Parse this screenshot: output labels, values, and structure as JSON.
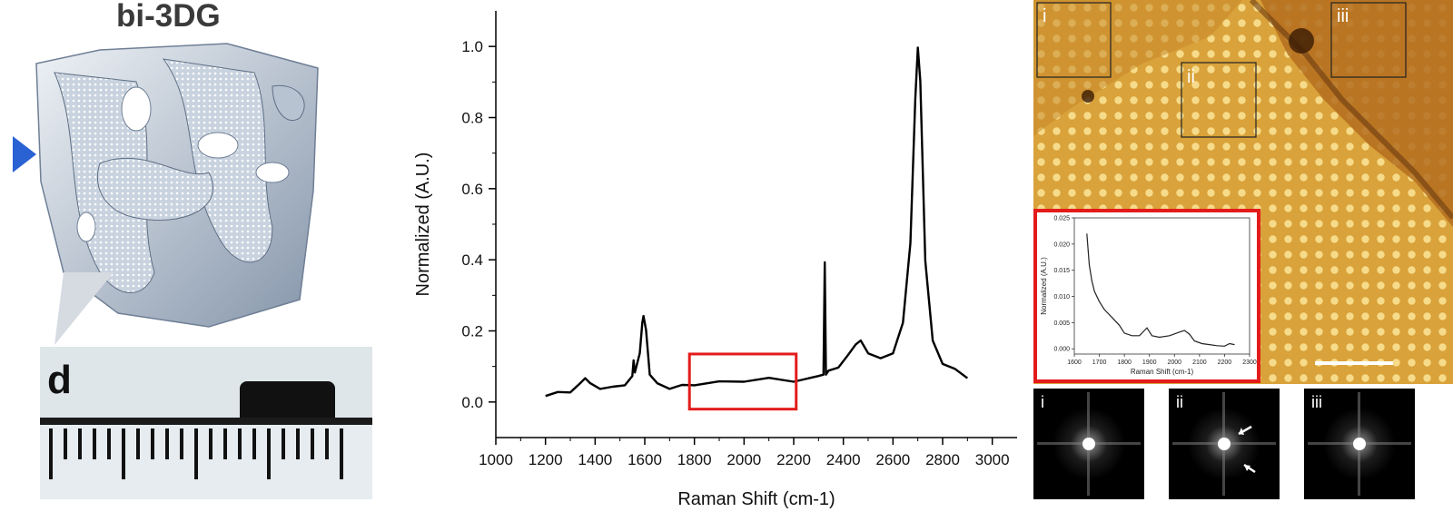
{
  "left_panel": {
    "title": "bi-3DG",
    "photo_label": "d",
    "pointer_color": "#2a62d4"
  },
  "chart_data": {
    "type": "line",
    "xlabel": "Raman Shift (cm-1)",
    "ylabel": "Normalized (A.U.)",
    "xlim": [
      1000,
      3100
    ],
    "ylim": [
      -0.1,
      1.1
    ],
    "xticks": [
      1000,
      1200,
      1400,
      1600,
      1800,
      2000,
      2200,
      2400,
      2600,
      2800,
      3000
    ],
    "yticks": [
      0.0,
      0.2,
      0.4,
      0.6,
      0.8,
      1.0
    ],
    "series": [
      {
        "color": "#000000",
        "x": [
          1200,
          1250,
          1300,
          1340,
          1360,
          1380,
          1420,
          1470,
          1520,
          1550,
          1555,
          1560,
          1580,
          1590,
          1595,
          1605,
          1620,
          1650,
          1700,
          1750,
          1800,
          1900,
          2000,
          2100,
          2200,
          2300,
          2320,
          2325,
          2330,
          2340,
          2380,
          2420,
          2450,
          2470,
          2500,
          2550,
          2600,
          2640,
          2670,
          2690,
          2700,
          2710,
          2730,
          2760,
          2800,
          2850,
          2900
        ],
        "y": [
          0.02,
          0.025,
          0.03,
          0.05,
          0.07,
          0.05,
          0.04,
          0.04,
          0.05,
          0.07,
          0.12,
          0.08,
          0.14,
          0.22,
          0.245,
          0.2,
          0.08,
          0.05,
          0.04,
          0.045,
          0.05,
          0.055,
          0.06,
          0.065,
          0.06,
          0.07,
          0.08,
          0.39,
          0.08,
          0.085,
          0.1,
          0.13,
          0.165,
          0.17,
          0.14,
          0.12,
          0.14,
          0.22,
          0.45,
          0.85,
          1.0,
          0.9,
          0.4,
          0.17,
          0.11,
          0.09,
          0.07
        ]
      }
    ],
    "highlight_box": {
      "x0": 1780,
      "x1": 2210,
      "y0": -0.02,
      "y1": 0.135,
      "color": "#e31b1b"
    },
    "inset": {
      "type": "line",
      "xlabel": "Raman Shift (cm-1)",
      "ylabel": "Normalized (A.U.)",
      "xlim": [
        1600,
        2300
      ],
      "ylim": [
        -0.001,
        0.025
      ],
      "xticks": [
        1600,
        1700,
        1800,
        1900,
        2000,
        2100,
        2200,
        2300
      ],
      "yticks": [
        0.0,
        0.005,
        0.01,
        0.015,
        0.02,
        0.025
      ],
      "ytick_labels": [
        "0.000",
        "0.005",
        "0.010",
        "0.015",
        "0.020",
        "0.025"
      ],
      "series": [
        {
          "color": "#222222",
          "x": [
            1650,
            1660,
            1670,
            1680,
            1700,
            1720,
            1750,
            1780,
            1800,
            1830,
            1860,
            1880,
            1890,
            1910,
            1940,
            1980,
            2020,
            2040,
            2060,
            2080,
            2110,
            2140,
            2170,
            2200,
            2220,
            2240
          ],
          "y": [
            0.022,
            0.016,
            0.013,
            0.011,
            0.009,
            0.0075,
            0.006,
            0.0045,
            0.003,
            0.0025,
            0.0025,
            0.0035,
            0.004,
            0.0025,
            0.0022,
            0.0025,
            0.0032,
            0.0035,
            0.0028,
            0.0015,
            0.001,
            0.0008,
            0.0006,
            0.0005,
            0.001,
            0.0008
          ]
        }
      ],
      "border_color": "#e31b1b"
    }
  },
  "afm_panel": {
    "roi_labels": [
      "i",
      "ii",
      "iii"
    ],
    "fft_labels": [
      "i",
      "ii",
      "iii"
    ],
    "base_color": "#d9a23a"
  }
}
